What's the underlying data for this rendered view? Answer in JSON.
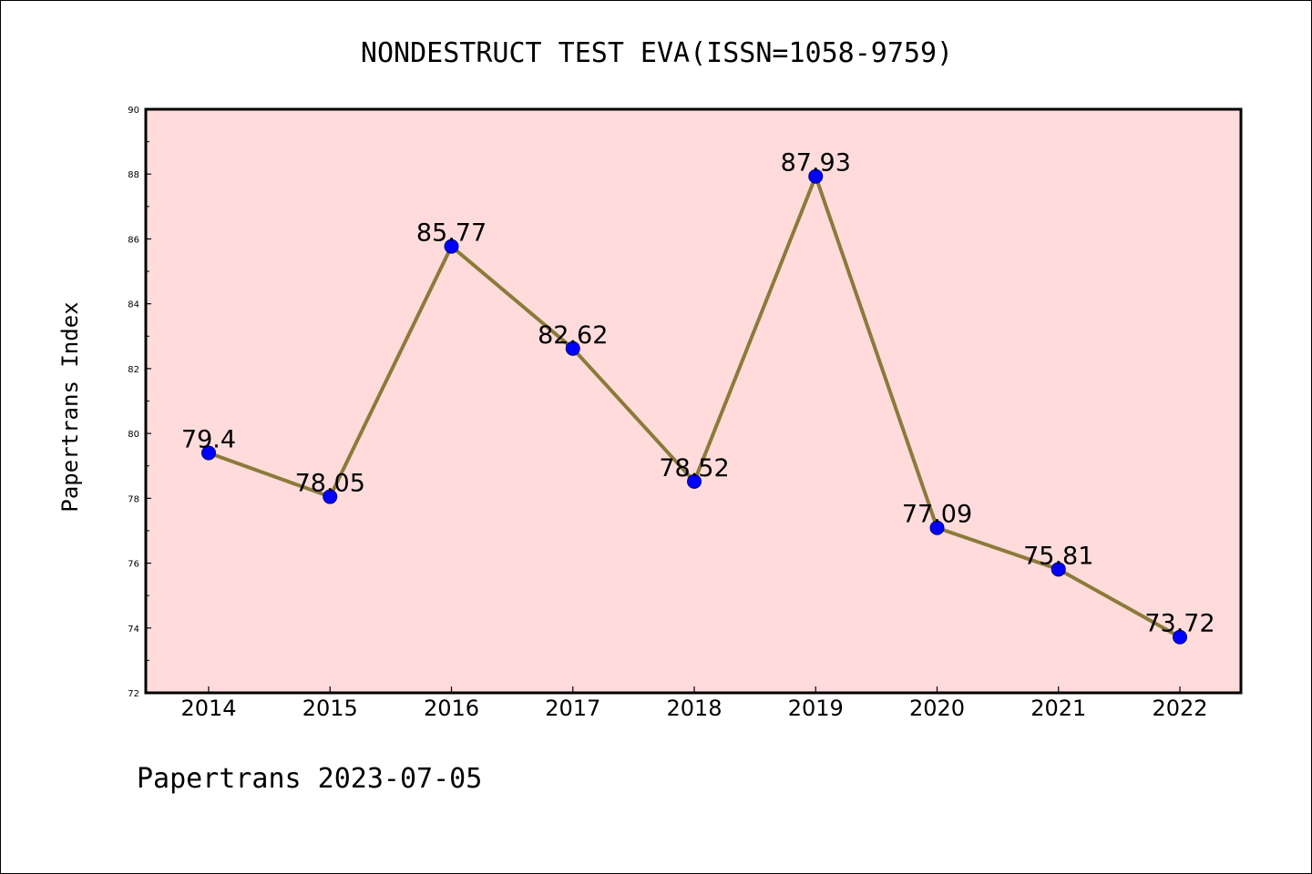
{
  "colors": {
    "plot_background": "#ffdcdb",
    "line": "#8b7a3a",
    "marker_fill": "#0000ff",
    "marker_edge": "#000080",
    "axes": "#000000",
    "page_background": "#ffffff"
  },
  "chart_data": {
    "type": "line",
    "title": "NONDESTRUCT TEST EVA(ISSN=1058-9759)",
    "xlabel": "",
    "ylabel": "Papertrans Index",
    "footer": "Papertrans 2023-07-05",
    "x": [
      "2014",
      "2015",
      "2016",
      "2017",
      "2018",
      "2019",
      "2020",
      "2021",
      "2022"
    ],
    "series": [
      {
        "values": [
          79.4,
          78.05,
          85.77,
          82.62,
          78.52,
          87.93,
          77.09,
          75.81,
          73.72
        ],
        "labels": [
          "79.4",
          "78.05",
          "85.77",
          "82.62",
          "78.52",
          "87.93",
          "77.09",
          "75.81",
          "73.72"
        ]
      }
    ],
    "ylim": [
      72,
      90
    ],
    "yticks": [
      72,
      74,
      76,
      78,
      80,
      82,
      84,
      86,
      88,
      90
    ],
    "ytick_labels": [
      "72",
      "74",
      "76",
      "78",
      "80",
      "82",
      "84",
      "86",
      "88",
      "90"
    ],
    "grid": false,
    "legend": "none"
  }
}
